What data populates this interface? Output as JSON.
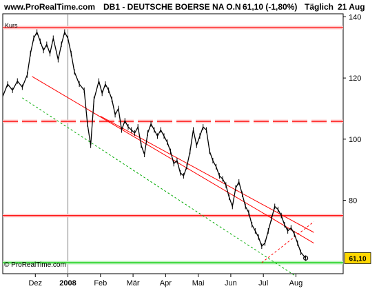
{
  "header": {
    "site": "www.ProRealTime.com",
    "instrument": "DB1 - DEUTSCHE BOERSE NA O.N",
    "quote": "61,10 (-1,80%)",
    "timeframe": "Täglich",
    "date": "21 Aug"
  },
  "chart_data": {
    "type": "line",
    "ylabel": "Kurs",
    "ylim": [
      56,
      141
    ],
    "yticks": [
      {
        "v": 140,
        "label": "140"
      },
      {
        "v": 120,
        "label": "120"
      },
      {
        "v": 100,
        "label": "100"
      },
      {
        "v": 80,
        "label": "80"
      }
    ],
    "xlim": [
      0,
      10.45
    ],
    "months": [
      {
        "t": 1.0,
        "label": "Dez"
      },
      {
        "t": 2.0,
        "label": "2008"
      },
      {
        "t": 3.0,
        "label": "Feb"
      },
      {
        "t": 4.0,
        "label": "Mär"
      },
      {
        "t": 5.0,
        "label": "Apr"
      },
      {
        "t": 6.0,
        "label": "Mai"
      },
      {
        "t": 7.0,
        "label": "Jun"
      },
      {
        "t": 8.0,
        "label": "Jul"
      },
      {
        "t": 9.0,
        "label": "Aug"
      }
    ],
    "series": [
      {
        "points": [
          [
            0.0,
            114
          ],
          [
            0.15,
            118
          ],
          [
            0.3,
            116
          ],
          [
            0.45,
            119
          ],
          [
            0.6,
            117
          ],
          [
            0.75,
            121
          ],
          [
            0.85,
            128
          ],
          [
            0.95,
            133
          ],
          [
            1.05,
            135
          ],
          [
            1.15,
            132
          ],
          [
            1.25,
            129
          ],
          [
            1.35,
            131
          ],
          [
            1.45,
            128
          ],
          [
            1.55,
            133
          ],
          [
            1.7,
            126
          ],
          [
            1.8,
            131
          ],
          [
            1.9,
            135
          ],
          [
            2.0,
            133
          ],
          [
            2.1,
            128
          ],
          [
            2.2,
            122
          ],
          [
            2.35,
            118
          ],
          [
            2.5,
            116
          ],
          [
            2.6,
            105
          ],
          [
            2.7,
            98
          ],
          [
            2.8,
            113
          ],
          [
            2.95,
            119
          ],
          [
            3.05,
            115
          ],
          [
            3.15,
            118
          ],
          [
            3.25,
            116
          ],
          [
            3.35,
            113
          ],
          [
            3.45,
            108
          ],
          [
            3.55,
            110
          ],
          [
            3.65,
            103
          ],
          [
            3.75,
            106
          ],
          [
            3.85,
            104
          ],
          [
            3.95,
            103
          ],
          [
            4.05,
            102
          ],
          [
            4.15,
            104
          ],
          [
            4.25,
            98
          ],
          [
            4.35,
            95
          ],
          [
            4.45,
            102
          ],
          [
            4.55,
            105
          ],
          [
            4.65,
            103
          ],
          [
            4.75,
            101
          ],
          [
            4.85,
            103
          ],
          [
            4.95,
            101
          ],
          [
            5.05,
            99
          ],
          [
            5.15,
            96
          ],
          [
            5.25,
            92
          ],
          [
            5.35,
            93
          ],
          [
            5.45,
            89
          ],
          [
            5.55,
            88
          ],
          [
            5.65,
            91
          ],
          [
            5.75,
            96
          ],
          [
            5.85,
            103
          ],
          [
            5.95,
            98
          ],
          [
            6.05,
            101
          ],
          [
            6.15,
            104
          ],
          [
            6.25,
            103
          ],
          [
            6.35,
            96
          ],
          [
            6.45,
            93
          ],
          [
            6.55,
            91
          ],
          [
            6.65,
            88
          ],
          [
            6.75,
            87
          ],
          [
            6.85,
            85
          ],
          [
            6.95,
            81
          ],
          [
            7.05,
            78
          ],
          [
            7.15,
            84
          ],
          [
            7.25,
            86
          ],
          [
            7.35,
            82
          ],
          [
            7.45,
            78
          ],
          [
            7.55,
            76
          ],
          [
            7.65,
            72
          ],
          [
            7.75,
            70
          ],
          [
            7.85,
            68
          ],
          [
            7.95,
            65
          ],
          [
            8.05,
            66
          ],
          [
            8.15,
            70
          ],
          [
            8.25,
            74
          ],
          [
            8.35,
            78
          ],
          [
            8.45,
            77
          ],
          [
            8.55,
            75
          ],
          [
            8.65,
            72
          ],
          [
            8.75,
            70
          ],
          [
            8.85,
            71
          ],
          [
            8.95,
            69
          ],
          [
            9.05,
            66
          ],
          [
            9.15,
            63
          ],
          [
            9.3,
            61.1
          ]
        ]
      }
    ],
    "horizontal_lines": [
      {
        "value": 136.5,
        "color": "#ff0000",
        "style": "solid"
      },
      {
        "value": 105.8,
        "color": "#ff0000",
        "style": "dashed"
      },
      {
        "value": 75,
        "color": "#ff0000",
        "style": "solid"
      },
      {
        "value": 59.6,
        "color": "#00cc00",
        "style": "solid"
      }
    ],
    "trend_lines": [
      {
        "from": [
          0.9,
          120.5
        ],
        "to": [
          9.55,
          66
        ],
        "color": "#ff0000",
        "style": "solid"
      },
      {
        "from": [
          3.0,
          107.5
        ],
        "to": [
          9.55,
          69.5
        ],
        "color": "#ff0000",
        "style": "solid"
      },
      {
        "from": [
          0.6,
          113.5
        ],
        "to": [
          8.95,
          55.5
        ],
        "color": "#00aa00",
        "style": "dotted"
      },
      {
        "from": [
          7.95,
          59.6
        ],
        "to": [
          9.55,
          73
        ],
        "color": "#ff0000",
        "style": "dotted"
      }
    ],
    "vertical_lines": [
      {
        "t": 2.0,
        "color": "#808080"
      }
    ],
    "last_value": {
      "label": "61,10",
      "value": 61.1,
      "color": "#ffd700"
    },
    "credit": "© ProRealTime.com",
    "grid": false
  }
}
